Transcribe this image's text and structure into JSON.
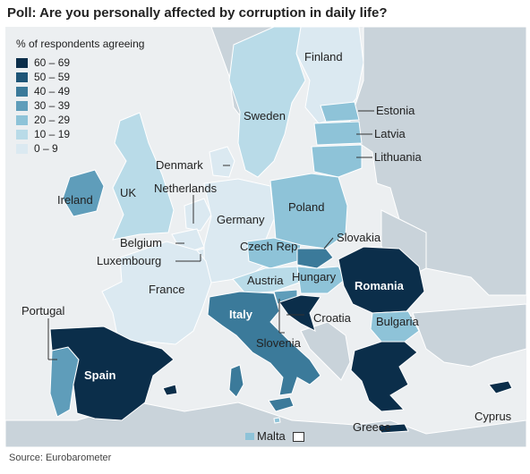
{
  "title": "Poll: Are you personally affected by corruption in daily life?",
  "legend": {
    "title": "% of respondents agreeing",
    "items": [
      {
        "label": "60 – 69",
        "color": "#0b2e4a"
      },
      {
        "label": "50 – 59",
        "color": "#1e5577"
      },
      {
        "label": "40 – 49",
        "color": "#3b7a9a"
      },
      {
        "label": "30 – 39",
        "color": "#5f9dba"
      },
      {
        "label": "20 – 29",
        "color": "#8ec3d8"
      },
      {
        "label": "10 – 19",
        "color": "#b9dbe8"
      },
      {
        "label": "0 – 9",
        "color": "#dbe9f1"
      }
    ]
  },
  "colors": {
    "sea": "#eceff1",
    "non_eu_land": "#c9d3da",
    "border": "#ffffff",
    "leader": "#333333"
  },
  "countries": {
    "finland": {
      "label": "Finland",
      "color": "#dbe9f1"
    },
    "sweden": {
      "label": "Sweden",
      "color": "#b9dbe8"
    },
    "estonia": {
      "label": "Estonia",
      "color": "#8ec3d8"
    },
    "latvia": {
      "label": "Latvia",
      "color": "#8ec3d8"
    },
    "lithuania": {
      "label": "Lithuania",
      "color": "#8ec3d8"
    },
    "denmark": {
      "label": "Denmark",
      "color": "#dbe9f1"
    },
    "netherlands": {
      "label": "Netherlands",
      "color": "#dbe9f1"
    },
    "ireland": {
      "label": "Ireland",
      "color": "#5f9dba"
    },
    "uk": {
      "label": "UK",
      "color": "#b9dbe8"
    },
    "belgium": {
      "label": "Belgium",
      "color": "#dbe9f1"
    },
    "luxembourg": {
      "label": "Luxembourg",
      "color": "#dbe9f1"
    },
    "germany": {
      "label": "Germany",
      "color": "#dbe9f1"
    },
    "poland": {
      "label": "Poland",
      "color": "#8ec3d8"
    },
    "czech_rep": {
      "label": "Czech Rep",
      "color": "#8ec3d8"
    },
    "slovakia": {
      "label": "Slovakia",
      "color": "#3b7a9a"
    },
    "france": {
      "label": "France",
      "color": "#dbe9f1"
    },
    "austria": {
      "label": "Austria",
      "color": "#b9dbe8"
    },
    "hungary": {
      "label": "Hungary",
      "color": "#8ec3d8"
    },
    "romania": {
      "label": "Romania",
      "color": "#0b2e4a"
    },
    "portugal": {
      "label": "Portugal",
      "color": "#5f9dba"
    },
    "spain": {
      "label": "Spain",
      "color": "#0b2e4a"
    },
    "italy": {
      "label": "Italy",
      "color": "#3b7a9a"
    },
    "croatia": {
      "label": "Croatia",
      "color": "#0b2e4a"
    },
    "slovenia": {
      "label": "Slovenia",
      "color": "#5f9dba"
    },
    "bulgaria": {
      "label": "Bulgaria",
      "color": "#8ec3d8"
    },
    "greece": {
      "label": "Greece",
      "color": "#0b2e4a"
    },
    "cyprus": {
      "label": "Cyprus",
      "color": "#0b2e4a"
    },
    "malta": {
      "label": "Malta",
      "color": "#8ec3d8"
    }
  },
  "source": "Source: Eurobarometer"
}
